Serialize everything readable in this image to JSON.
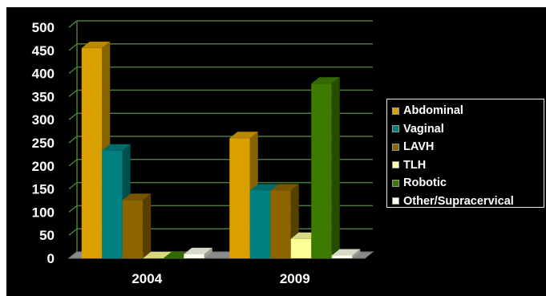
{
  "chart_data": {
    "type": "bar",
    "categories": [
      "2004",
      "2009"
    ],
    "series": [
      {
        "name": "Abdominal",
        "values": [
          455,
          260
        ],
        "color": "#D9A000"
      },
      {
        "name": "Vaginal",
        "values": [
          233,
          147
        ],
        "color": "#008080"
      },
      {
        "name": "LAVH",
        "values": [
          126,
          147
        ],
        "color": "#8C6500"
      },
      {
        "name": "TLH",
        "values": [
          0,
          42
        ],
        "color": "#FFFF99"
      },
      {
        "name": "Robotic",
        "values": [
          0,
          378
        ],
        "color": "#3D7A00"
      },
      {
        "name": "Other/Supracervical",
        "values": [
          9,
          6
        ],
        "color": "#FFFFEE"
      }
    ],
    "ylim": [
      0,
      500
    ],
    "yticks": [
      "0",
      "50",
      "100",
      "150",
      "200",
      "250",
      "300",
      "350",
      "400",
      "450",
      "500"
    ],
    "grid": true,
    "legend_position": "right",
    "background": "#000000",
    "gridline_color": "#4A7A3A"
  }
}
